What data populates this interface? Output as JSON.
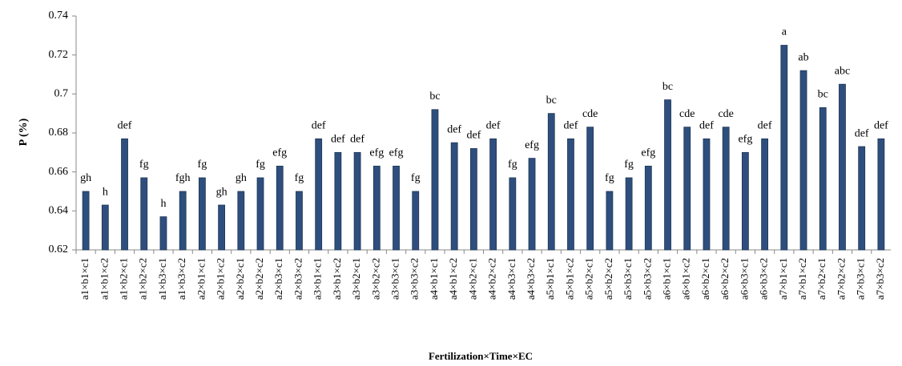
{
  "chart_data": {
    "type": "bar",
    "x_label": "Fertilization×Time×EC",
    "y_label": "P (%)",
    "categories": [
      "a1×b1×c1",
      "a1×b1×c2",
      "a1×b2×c1",
      "a1×b2×c2",
      "a1×b3×c1",
      "a1×b3×c2",
      "a2×b1×c1",
      "a2×b1×c2",
      "a2×b2×c1",
      "a2×b2×c2",
      "a2×b3×c1",
      "a2×b3×c2",
      "a3×b1×c1",
      "a3×b1×c2",
      "a3×b2×c1",
      "a3×b2×c2",
      "a3×b3×c1",
      "a3×b3×c2",
      "a4×b1×c1",
      "a4×b1×c2",
      "a4×b2×c1",
      "a4×b2×c2",
      "a4×b3×c1",
      "a4×b3×c2",
      "a5×b1×c1",
      "a5×b1×c2",
      "a5×b2×c1",
      "a5×b2×c2",
      "a5×b3×c1",
      "a5×b3×c2",
      "a6×b1×c1",
      "a6×b1×c2",
      "a6×b2×c1",
      "a6×b2×c2",
      "a6×b3×c1",
      "a6×b3×c2",
      "a7×b1×c1",
      "a7×b1×c2",
      "a7×b2×c1",
      "a7×b2×c2",
      "a7×b3×c1",
      "a7×b3×c2"
    ],
    "values": [
      0.65,
      0.643,
      0.677,
      0.657,
      0.637,
      0.65,
      0.657,
      0.643,
      0.65,
      0.657,
      0.663,
      0.65,
      0.677,
      0.67,
      0.67,
      0.663,
      0.663,
      0.65,
      0.692,
      0.675,
      0.672,
      0.677,
      0.657,
      0.667,
      0.69,
      0.677,
      0.683,
      0.65,
      0.657,
      0.663,
      0.697,
      0.683,
      0.677,
      0.683,
      0.67,
      0.677,
      0.725,
      0.712,
      0.693,
      0.705,
      0.673,
      0.677
    ],
    "annotations": [
      "gh",
      "h",
      "def",
      "fg",
      "h",
      "fgh",
      "fg",
      "gh",
      "gh",
      "fg",
      "efg",
      "fg",
      "def",
      "def",
      "def",
      "efg",
      "efg",
      "fg",
      "bc",
      "def",
      "def",
      "def",
      "fg",
      "efg",
      "bc",
      "def",
      "cde",
      "fg",
      "fg",
      "efg",
      "bc",
      "cde",
      "def",
      "cde",
      "efg",
      "def",
      "a",
      "ab",
      "bc",
      "abc",
      "def",
      "def"
    ],
    "color": "#2e4f7e",
    "ylim": [
      0.62,
      0.74
    ],
    "yticks": [
      0.62,
      0.64,
      0.66,
      0.68,
      0.7,
      0.72,
      0.74
    ],
    "grid": false
  }
}
